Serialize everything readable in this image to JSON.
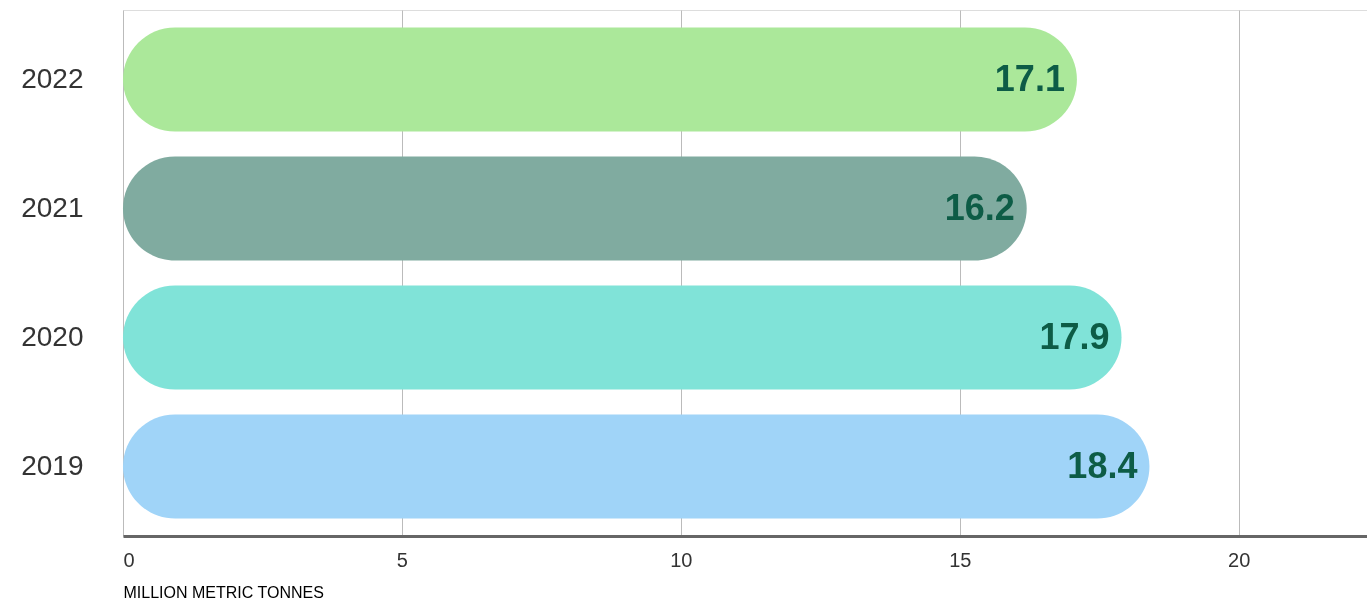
{
  "chart_data": {
    "type": "bar",
    "orientation": "horizontal",
    "xlabel": "MILLION METRIC TONNES",
    "categories": [
      "2022",
      "2021",
      "2020",
      "2019"
    ],
    "values": [
      17.1,
      16.2,
      17.9,
      18.4
    ],
    "colors": [
      "#abe89a",
      "#80aba0",
      "#80e3d8",
      "#a0d4f8"
    ],
    "xlim": [
      0,
      22.3
    ],
    "xticks": [
      0,
      5,
      10,
      15,
      20
    ],
    "grid": "x",
    "data_labels": true
  }
}
